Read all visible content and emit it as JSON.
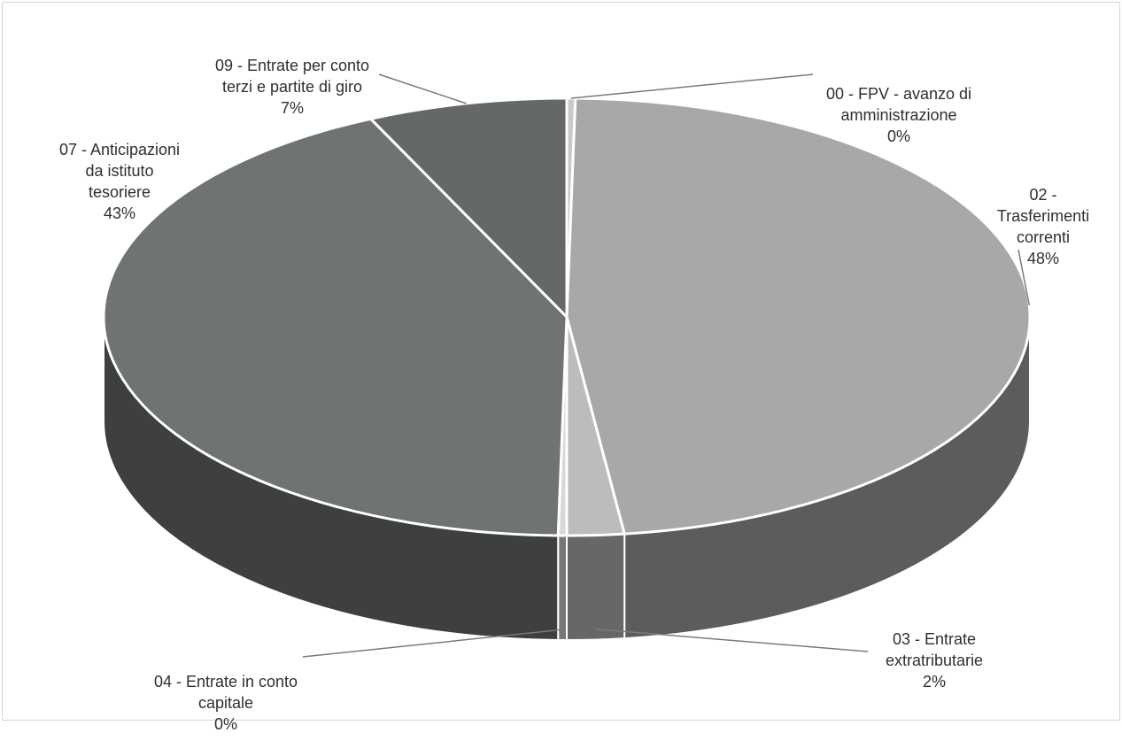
{
  "chart_data": {
    "type": "pie",
    "style": "3d",
    "title": "",
    "legend": "none",
    "slices": [
      {
        "label": "00 - FPV - avanzo di\namministrazione",
        "percent_label": "0%",
        "value": 0.3,
        "color": "#c9c9c9"
      },
      {
        "label": "02 - Trasferimenti\ncorrenti",
        "percent_label": "48%",
        "value": 48,
        "color": "#a8a8a8"
      },
      {
        "label": "03 - Entrate\nextratributarie",
        "percent_label": "2%",
        "value": 2,
        "color": "#bcbcbc"
      },
      {
        "label": "04 - Entrate in conto\ncapitale",
        "percent_label": "0%",
        "value": 0.3,
        "color": "#d8d8d8"
      },
      {
        "label": "07 - Anticipazioni\nda istituto\ntesoriere",
        "percent_label": "43%",
        "value": 43,
        "color": "#6f7472"
      },
      {
        "label": "09 - Entrate per conto\nterzi e partite di giro",
        "percent_label": "7%",
        "value": 7,
        "color": "#646866"
      }
    ]
  }
}
